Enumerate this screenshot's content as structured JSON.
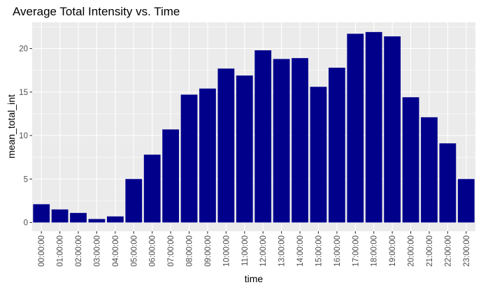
{
  "chart_data": {
    "type": "bar",
    "title": "Average Total Intensity vs. Time",
    "xlabel": "time",
    "ylabel": "mean_total_int",
    "categories": [
      "00:00:00",
      "01:00:00",
      "02:00:00",
      "03:00:00",
      "04:00:00",
      "05:00:00",
      "06:00:00",
      "07:00:00",
      "08:00:00",
      "09:00:00",
      "10:00:00",
      "11:00:00",
      "12:00:00",
      "13:00:00",
      "14:00:00",
      "15:00:00",
      "16:00:00",
      "17:00:00",
      "18:00:00",
      "19:00:00",
      "20:00:00",
      "21:00:00",
      "22:00:00",
      "23:00:00"
    ],
    "values": [
      2.1,
      1.5,
      1.1,
      0.4,
      0.7,
      5.0,
      7.8,
      10.7,
      14.7,
      15.4,
      17.7,
      16.9,
      19.8,
      18.8,
      18.9,
      15.6,
      17.8,
      21.7,
      21.9,
      21.4,
      14.4,
      12.1,
      9.1,
      5.0
    ],
    "yticks": [
      0,
      5,
      10,
      15,
      20
    ],
    "ylim": [
      0,
      23
    ],
    "grid": true,
    "bar_color": "#00008b",
    "panel_color": "#ebebeb",
    "grid_color": "#ffffff"
  }
}
